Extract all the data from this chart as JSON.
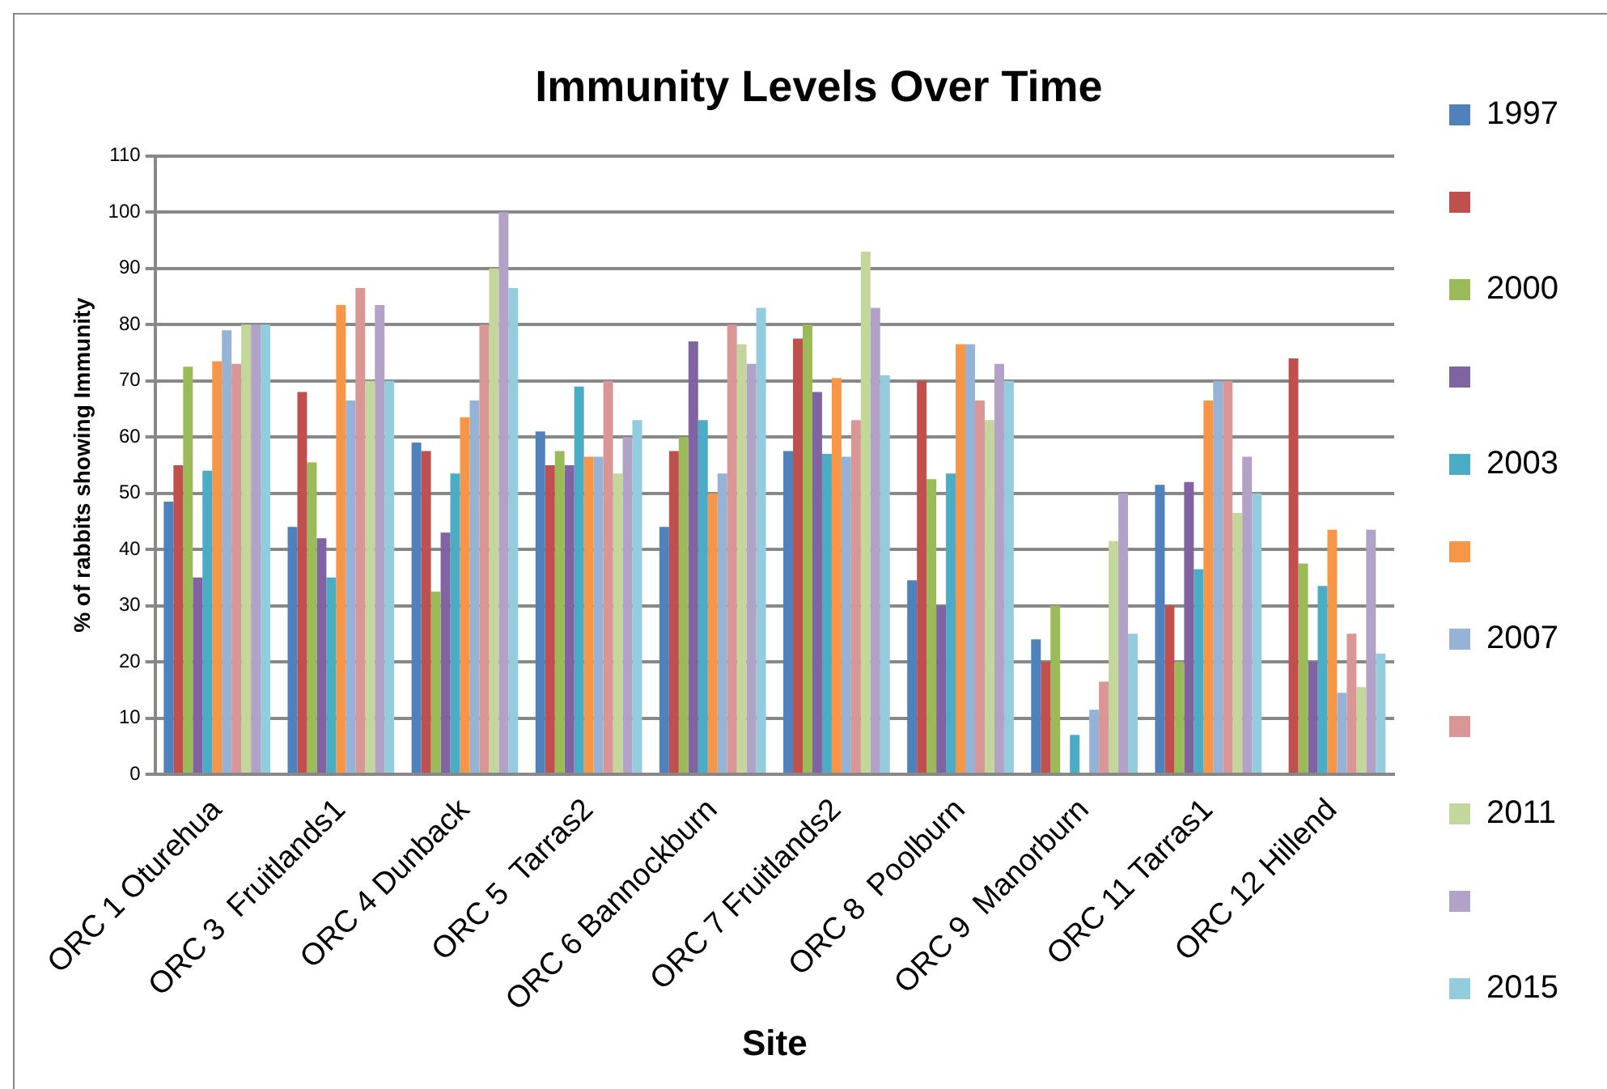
{
  "chart_data": {
    "type": "bar",
    "title": "Immunity Levels Over Time",
    "xlabel": "Site",
    "ylabel": "% of rabbits showing Immunity",
    "categories": [
      "ORC 1 Oturehua",
      "ORC 3  Fruitlands1",
      "ORC 4 Dunback",
      "ORC 5  Tarras2",
      "ORC 6 Bannockburn",
      "ORC 7 Fruitlands2",
      "ORC 8  Poolburn",
      "ORC 9  Manorburn",
      "ORC 11 Tarras1",
      "ORC 12 Hillend"
    ],
    "series": [
      {
        "name": "1997",
        "color": "#4f81bd",
        "values": [
          48.5,
          44,
          59,
          61,
          44,
          57.5,
          34.5,
          24,
          51.5,
          null
        ]
      },
      {
        "color": "#c0504d",
        "values": [
          55,
          68,
          57.5,
          55,
          57.5,
          77.5,
          70,
          20,
          30,
          74
        ]
      },
      {
        "name": "2000",
        "color": "#9bbb59",
        "values": [
          72.5,
          55.5,
          32.5,
          57.5,
          60,
          80,
          52.5,
          30,
          20,
          37.5
        ]
      },
      {
        "color": "#8064a2",
        "values": [
          35,
          42,
          43,
          55,
          77,
          68,
          30,
          null,
          52,
          20
        ]
      },
      {
        "name": "2003",
        "color": "#4bacc6",
        "values": [
          54,
          35,
          53.5,
          69,
          63,
          57,
          53.5,
          7,
          36.5,
          33.5
        ]
      },
      {
        "color": "#f79646",
        "values": [
          73.5,
          83.5,
          63.5,
          56.5,
          50,
          70.5,
          76.5,
          null,
          66.5,
          43.5
        ]
      },
      {
        "name": "2007",
        "color": "#95b3d7",
        "values": [
          79,
          66.5,
          66.5,
          56.5,
          53.5,
          56.5,
          76.5,
          11.5,
          70,
          14.5
        ]
      },
      {
        "color": "#da9694",
        "values": [
          73,
          86.5,
          80,
          70,
          80,
          63,
          66.5,
          16.5,
          70,
          25
        ]
      },
      {
        "name": "2011",
        "color": "#c3d69b",
        "values": [
          80,
          70,
          90,
          53.5,
          76.5,
          93,
          63,
          41.5,
          46.5,
          15.5
        ]
      },
      {
        "color": "#b3a2c7",
        "values": [
          80,
          83.5,
          100,
          60,
          73,
          83,
          73,
          50,
          56.5,
          43.5
        ]
      },
      {
        "name": "2015",
        "color": "#93cddd",
        "values": [
          80,
          70,
          86.5,
          63,
          83,
          71,
          70,
          25,
          50,
          21.5
        ]
      }
    ],
    "ylim": [
      0,
      110
    ],
    "yticks": [
      0,
      10,
      20,
      30,
      40,
      50,
      60,
      70,
      80,
      90,
      100,
      110
    ],
    "grid": "y",
    "legend": "right"
  }
}
